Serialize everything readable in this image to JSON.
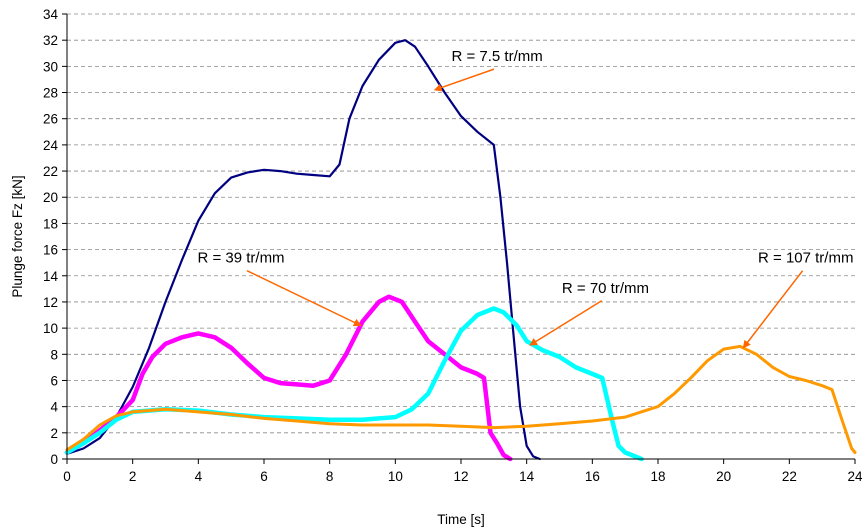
{
  "chart_data": {
    "type": "line",
    "title": "",
    "xlabel": "Time [s]",
    "ylabel": "Plunge force Fz [kN]",
    "xlim": [
      0,
      24
    ],
    "ylim": [
      0,
      34
    ],
    "xticks": [
      0,
      2,
      4,
      6,
      8,
      10,
      12,
      14,
      16,
      18,
      20,
      22,
      24
    ],
    "yticks": [
      0,
      2,
      4,
      6,
      8,
      10,
      12,
      14,
      16,
      18,
      20,
      22,
      24,
      26,
      28,
      30,
      32,
      34
    ],
    "grid": "horizontal dashed",
    "legend": "none",
    "series": [
      {
        "name": "R = 7.5 tr/mm",
        "color": "#000080",
        "width": 2.2,
        "x": [
          0,
          0.5,
          1.0,
          1.5,
          2.0,
          2.5,
          3.0,
          3.5,
          4.0,
          4.5,
          5.0,
          5.5,
          6.0,
          6.5,
          7.0,
          7.5,
          8.0,
          8.3,
          8.6,
          9.0,
          9.5,
          10.0,
          10.3,
          10.6,
          11.0,
          11.5,
          12.0,
          12.5,
          13.0,
          13.2,
          13.4,
          13.6,
          13.8,
          14.0,
          14.2,
          14.4
        ],
        "y": [
          0.4,
          0.8,
          1.6,
          3.2,
          5.5,
          8.5,
          12.0,
          15.2,
          18.2,
          20.3,
          21.5,
          21.9,
          22.1,
          22.0,
          21.8,
          21.7,
          21.6,
          22.5,
          26.0,
          28.5,
          30.5,
          31.8,
          32.0,
          31.5,
          30.0,
          28.0,
          26.2,
          25.0,
          24.0,
          20.0,
          15.0,
          9.5,
          4.0,
          1.0,
          0.2,
          0.0
        ]
      },
      {
        "name": "R = 39 tr/mm",
        "color": "#ff00ff",
        "width": 4.5,
        "x": [
          0,
          0.5,
          1.0,
          1.5,
          2.0,
          2.3,
          2.6,
          3.0,
          3.5,
          4.0,
          4.5,
          5.0,
          5.5,
          6.0,
          6.5,
          7.0,
          7.5,
          8.0,
          8.5,
          9.0,
          9.5,
          9.8,
          10.2,
          10.6,
          11.0,
          11.5,
          12.0,
          12.5,
          12.7,
          12.9,
          13.1,
          13.3,
          13.5
        ],
        "y": [
          0.5,
          1.2,
          2.2,
          3.2,
          4.5,
          6.5,
          7.8,
          8.8,
          9.3,
          9.6,
          9.3,
          8.5,
          7.3,
          6.2,
          5.8,
          5.7,
          5.6,
          6.0,
          8.0,
          10.5,
          12.0,
          12.4,
          12.0,
          10.5,
          9.0,
          8.0,
          7.0,
          6.5,
          6.2,
          2.0,
          1.2,
          0.3,
          0.0
        ]
      },
      {
        "name": "R = 70 tr/mm",
        "color": "#00ffff",
        "width": 4.5,
        "x": [
          0,
          0.5,
          1.0,
          1.5,
          2.0,
          3.0,
          4.0,
          5.0,
          6.0,
          7.0,
          8.0,
          9.0,
          10.0,
          10.5,
          11.0,
          11.5,
          12.0,
          12.5,
          13.0,
          13.3,
          13.7,
          14.0,
          14.5,
          15.0,
          15.5,
          16.0,
          16.3,
          16.6,
          16.8,
          17.0,
          17.3,
          17.5
        ],
        "y": [
          0.5,
          1.2,
          2.0,
          3.0,
          3.6,
          3.8,
          3.7,
          3.4,
          3.2,
          3.1,
          3.0,
          3.0,
          3.2,
          3.8,
          5.0,
          7.5,
          9.8,
          11.0,
          11.5,
          11.2,
          10.2,
          9.0,
          8.3,
          7.8,
          7.0,
          6.5,
          6.2,
          3.0,
          1.0,
          0.5,
          0.2,
          0.0
        ]
      },
      {
        "name": "R = 107 tr/mm",
        "color": "#ff9900",
        "width": 3.0,
        "x": [
          0,
          0.5,
          1.0,
          1.5,
          2.0,
          3.0,
          4.0,
          5.0,
          6.0,
          7.0,
          8.0,
          9.0,
          10.0,
          11.0,
          12.0,
          13.0,
          14.0,
          15.0,
          16.0,
          17.0,
          18.0,
          18.5,
          19.0,
          19.5,
          20.0,
          20.5,
          21.0,
          21.5,
          22.0,
          22.5,
          23.0,
          23.3,
          23.6,
          23.9,
          24.0
        ],
        "y": [
          0.7,
          1.5,
          2.6,
          3.3,
          3.6,
          3.8,
          3.6,
          3.4,
          3.1,
          2.9,
          2.7,
          2.6,
          2.6,
          2.6,
          2.5,
          2.4,
          2.5,
          2.7,
          2.9,
          3.2,
          4.0,
          5.0,
          6.2,
          7.5,
          8.4,
          8.6,
          8.0,
          7.0,
          6.3,
          6.0,
          5.6,
          5.3,
          3.0,
          0.8,
          0.5
        ]
      }
    ],
    "annotations": [
      {
        "text": "R = 7.5 tr/mm",
        "tip": [
          11.2,
          28.2
        ],
        "label_at": [
          13.1,
          30.4
        ]
      },
      {
        "text": "R = 39 tr/mm",
        "tip": [
          8.95,
          10.2
        ],
        "label_at": [
          5.3,
          15.0
        ]
      },
      {
        "text": "R = 70 tr/mm",
        "tip": [
          14.1,
          8.7
        ],
        "label_at": [
          16.4,
          12.7
        ]
      },
      {
        "text": "R = 107 tr/mm",
        "tip": [
          20.6,
          8.5
        ],
        "label_at": [
          22.5,
          15.0
        ]
      }
    ]
  }
}
